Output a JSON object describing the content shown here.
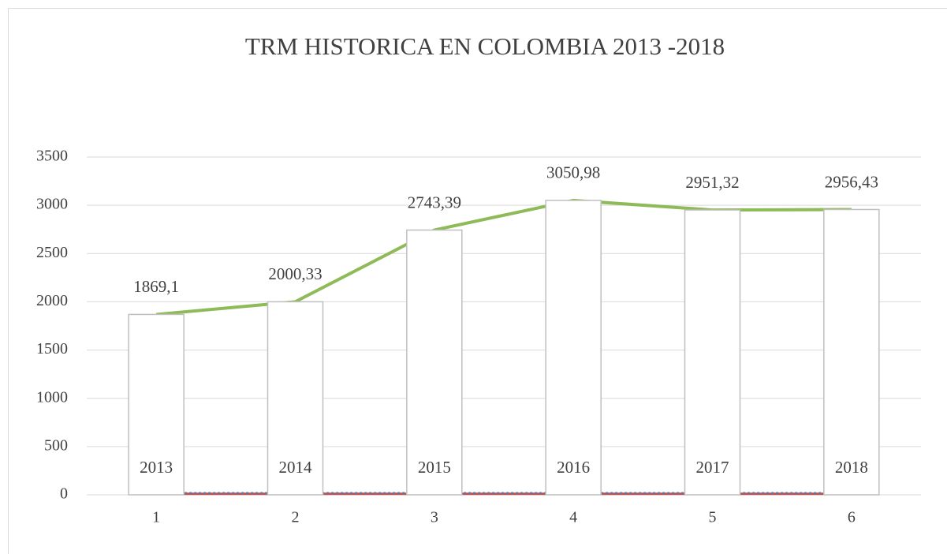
{
  "chart_data": {
    "type": "bar",
    "title": "TRM HISTORICA EN COLOMBIA  2013 -2018",
    "categories": [
      "1",
      "2",
      "3",
      "4",
      "5",
      "6"
    ],
    "bar_labels": [
      "2013",
      "2014",
      "2015",
      "2016",
      "2017",
      "2018"
    ],
    "series": [
      {
        "type": "bar",
        "color": "#ffffff",
        "values": [
          1869.1,
          2000.33,
          2743.39,
          3050.98,
          2951.32,
          2956.43
        ],
        "value_labels": [
          "1869,1",
          "2000,33",
          "2743,39",
          "3050,98",
          "2951,32",
          "2956,43"
        ]
      },
      {
        "type": "line",
        "color": "#8fba58",
        "values": [
          1869.1,
          2000.33,
          2743.39,
          3050.98,
          2951.32,
          2956.43
        ]
      },
      {
        "type": "line",
        "color": "#c0504d",
        "values": [
          10,
          10,
          10,
          10,
          10,
          10
        ]
      },
      {
        "type": "line",
        "color": "#4f81bd",
        "dashed": true,
        "values": [
          20,
          20,
          20,
          20,
          20,
          20
        ]
      }
    ],
    "ylim": [
      0,
      3500
    ],
    "yticks": [
      0,
      500,
      1000,
      1500,
      2000,
      2500,
      3000,
      3500
    ],
    "grid": true
  }
}
